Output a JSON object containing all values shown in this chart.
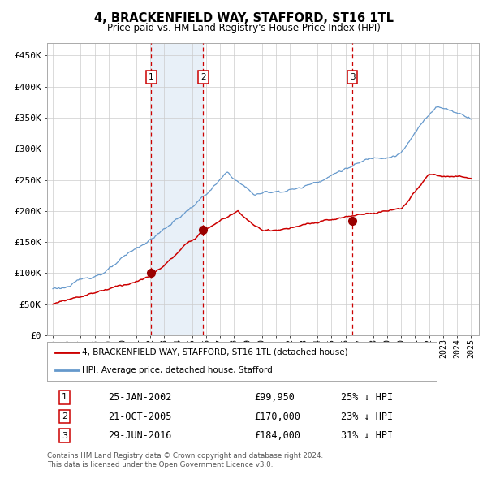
{
  "title": "4, BRACKENFIELD WAY, STAFFORD, ST16 1TL",
  "subtitle": "Price paid vs. HM Land Registry's House Price Index (HPI)",
  "sale_info": [
    {
      "label": "1",
      "date": "25-JAN-2002",
      "price": "£99,950",
      "pct": "25% ↓ HPI"
    },
    {
      "label": "2",
      "date": "21-OCT-2005",
      "price": "£170,000",
      "pct": "23% ↓ HPI"
    },
    {
      "label": "3",
      "date": "29-JUN-2016",
      "price": "£184,000",
      "pct": "31% ↓ HPI"
    }
  ],
  "sale_years": [
    2002.07,
    2005.8,
    2016.49
  ],
  "sale_prices": [
    99950,
    170000,
    184000
  ],
  "red_color": "#cc0000",
  "blue_color": "#6699cc",
  "shade_color": "#ddeeff",
  "marker_color": "#990000",
  "box_edge_color": "#cc0000",
  "grid_color": "#cccccc",
  "ytick_values": [
    0,
    50000,
    100000,
    150000,
    200000,
    250000,
    300000,
    350000,
    400000,
    450000
  ],
  "ytick_labels": [
    "£0",
    "£50K",
    "£100K",
    "£150K",
    "£200K",
    "£250K",
    "£300K",
    "£350K",
    "£400K",
    "£450K"
  ],
  "legend_red": "4, BRACKENFIELD WAY, STAFFORD, ST16 1TL (detached house)",
  "legend_blue": "HPI: Average price, detached house, Stafford",
  "footer1": "Contains HM Land Registry data © Crown copyright and database right 2024.",
  "footer2": "This data is licensed under the Open Government Licence v3.0."
}
